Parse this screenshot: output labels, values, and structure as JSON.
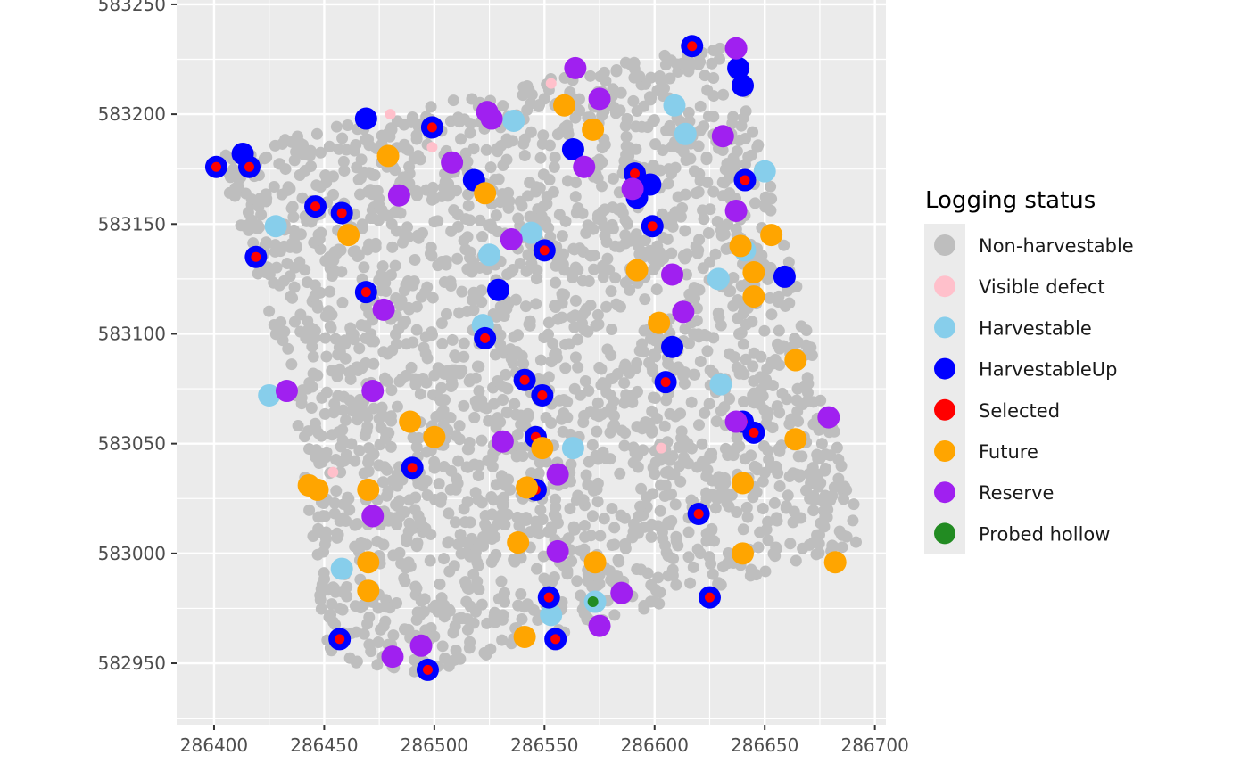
{
  "chart_data": {
    "type": "scatter",
    "title": "",
    "xlabel": "",
    "ylabel": "",
    "xlim": [
      286383,
      286705
    ],
    "ylim": [
      582922,
      583252
    ],
    "xticks": [
      286400,
      286450,
      286500,
      286550,
      286600,
      286650,
      286700
    ],
    "yticks": [
      582950,
      583000,
      583050,
      583100,
      583150,
      583200,
      583250
    ],
    "grid": true,
    "legend": {
      "title": "Logging status",
      "placement": "right",
      "entries": [
        {
          "label": "Non-harvestable",
          "color": "#BEBEBE"
        },
        {
          "label": "Visible defect",
          "color": "#FFC0CB"
        },
        {
          "label": "Harvestable",
          "color": "#87CEEB"
        },
        {
          "label": "HarvestableUp",
          "color": "#0000FF"
        },
        {
          "label": "Selected",
          "color": "#FF0000"
        },
        {
          "label": "Future",
          "color": "#FFA500"
        },
        {
          "label": "Reserve",
          "color": "#A020F0"
        },
        {
          "label": "Probed hollow",
          "color": "#228B22"
        }
      ]
    },
    "plot_region_polygon": [
      [
        286400,
        583182
      ],
      [
        286635,
        583235
      ],
      [
        286695,
        583005
      ],
      [
        286498,
        582945
      ],
      [
        286452,
        582952
      ],
      [
        286432,
        583088
      ]
    ],
    "series": [
      {
        "name": "Non-harvestable",
        "color": "#BEBEBE",
        "note": "dense field of ~2000 small points covering the plot region (generated procedurally)"
      },
      {
        "name": "Visible defect",
        "color": "#FFC0CB",
        "points": [
          [
            286553,
            583214
          ],
          [
            286480,
            583200
          ],
          [
            286499,
            583185
          ],
          [
            286454,
            583037
          ],
          [
            286603,
            583048
          ]
        ]
      },
      {
        "name": "Harvestable",
        "color": "#87CEEB",
        "points": [
          [
            286536,
            583197
          ],
          [
            286609,
            583204
          ],
          [
            286614,
            583191
          ],
          [
            286650,
            583174
          ],
          [
            286428,
            583149
          ],
          [
            286544,
            583146
          ],
          [
            286525,
            583136
          ],
          [
            286641,
            583138
          ],
          [
            286629,
            583125
          ],
          [
            286522,
            583104
          ],
          [
            286425,
            583072
          ],
          [
            286630,
            583077
          ],
          [
            286563,
            583048
          ],
          [
            286458,
            582993
          ],
          [
            286553,
            582972
          ],
          [
            286573,
            582978
          ]
        ]
      },
      {
        "name": "HarvestableUp",
        "color": "#0000FF",
        "points": [
          [
            286617,
            583231
          ],
          [
            286638,
            583221
          ],
          [
            286640,
            583213
          ],
          [
            286469,
            583198
          ],
          [
            286499,
            583194
          ],
          [
            286563,
            583184
          ],
          [
            286413,
            583182
          ],
          [
            286401,
            583176
          ],
          [
            286416,
            583176
          ],
          [
            286518,
            583170
          ],
          [
            286591,
            583173
          ],
          [
            286598,
            583168
          ],
          [
            286641,
            583170
          ],
          [
            286592,
            583162
          ],
          [
            286446,
            583158
          ],
          [
            286458,
            583155
          ],
          [
            286599,
            583149
          ],
          [
            286550,
            583138
          ],
          [
            286419,
            583135
          ],
          [
            286659,
            583126
          ],
          [
            286529,
            583120
          ],
          [
            286469,
            583119
          ],
          [
            286523,
            583098
          ],
          [
            286608,
            583094
          ],
          [
            286541,
            583079
          ],
          [
            286605,
            583078
          ],
          [
            286549,
            583072
          ],
          [
            286640,
            583060
          ],
          [
            286645,
            583055
          ],
          [
            286546,
            583053
          ],
          [
            286490,
            583039
          ],
          [
            286546,
            583029
          ],
          [
            286620,
            583018
          ],
          [
            286552,
            582980
          ],
          [
            286625,
            582980
          ],
          [
            286457,
            582961
          ],
          [
            286555,
            582961
          ],
          [
            286497,
            582947
          ]
        ]
      },
      {
        "name": "Selected",
        "color": "#FF0000",
        "points": [
          [
            286617,
            583231
          ],
          [
            286499,
            583194
          ],
          [
            286401,
            583176
          ],
          [
            286416,
            583176
          ],
          [
            286591,
            583173
          ],
          [
            286641,
            583170
          ],
          [
            286446,
            583158
          ],
          [
            286458,
            583155
          ],
          [
            286599,
            583149
          ],
          [
            286550,
            583138
          ],
          [
            286419,
            583135
          ],
          [
            286469,
            583119
          ],
          [
            286523,
            583098
          ],
          [
            286541,
            583079
          ],
          [
            286605,
            583078
          ],
          [
            286549,
            583072
          ],
          [
            286640,
            583060
          ],
          [
            286645,
            583055
          ],
          [
            286546,
            583053
          ],
          [
            286490,
            583039
          ],
          [
            286546,
            583029
          ],
          [
            286620,
            583018
          ],
          [
            286552,
            582980
          ],
          [
            286625,
            582980
          ],
          [
            286457,
            582961
          ],
          [
            286555,
            582961
          ],
          [
            286497,
            582947
          ]
        ]
      },
      {
        "name": "Future",
        "color": "#FFA500",
        "points": [
          [
            286559,
            583204
          ],
          [
            286572,
            583193
          ],
          [
            286479,
            583181
          ],
          [
            286523,
            583164
          ],
          [
            286461,
            583145
          ],
          [
            286653,
            583145
          ],
          [
            286639,
            583140
          ],
          [
            286592,
            583129
          ],
          [
            286645,
            583128
          ],
          [
            286645,
            583117
          ],
          [
            286602,
            583105
          ],
          [
            286664,
            583088
          ],
          [
            286489,
            583060
          ],
          [
            286500,
            583053
          ],
          [
            286549,
            583048
          ],
          [
            286664,
            583052
          ],
          [
            286443,
            583031
          ],
          [
            286447,
            583029
          ],
          [
            286470,
            583029
          ],
          [
            286542,
            583030
          ],
          [
            286640,
            583032
          ],
          [
            286538,
            583005
          ],
          [
            286470,
            582996
          ],
          [
            286573,
            582996
          ],
          [
            286640,
            583000
          ],
          [
            286682,
            582996
          ],
          [
            286470,
            582983
          ],
          [
            286541,
            582962
          ]
        ]
      },
      {
        "name": "Reserve",
        "color": "#A020F0",
        "points": [
          [
            286564,
            583221
          ],
          [
            286637,
            583230
          ],
          [
            286524,
            583201
          ],
          [
            286526,
            583198
          ],
          [
            286575,
            583207
          ],
          [
            286508,
            583178
          ],
          [
            286568,
            583176
          ],
          [
            286631,
            583190
          ],
          [
            286484,
            583163
          ],
          [
            286590,
            583166
          ],
          [
            286637,
            583156
          ],
          [
            286535,
            583143
          ],
          [
            286608,
            583127
          ],
          [
            286477,
            583111
          ],
          [
            286613,
            583110
          ],
          [
            286433,
            583074
          ],
          [
            286472,
            583074
          ],
          [
            286637,
            583060
          ],
          [
            286679,
            583062
          ],
          [
            286531,
            583051
          ],
          [
            286556,
            583036
          ],
          [
            286472,
            583017
          ],
          [
            286556,
            583001
          ],
          [
            286585,
            582982
          ],
          [
            286575,
            582967
          ],
          [
            286494,
            582958
          ],
          [
            286481,
            582953
          ]
        ]
      },
      {
        "name": "Probed hollow",
        "color": "#228B22",
        "points": [
          [
            286572,
            582978
          ]
        ]
      }
    ]
  }
}
